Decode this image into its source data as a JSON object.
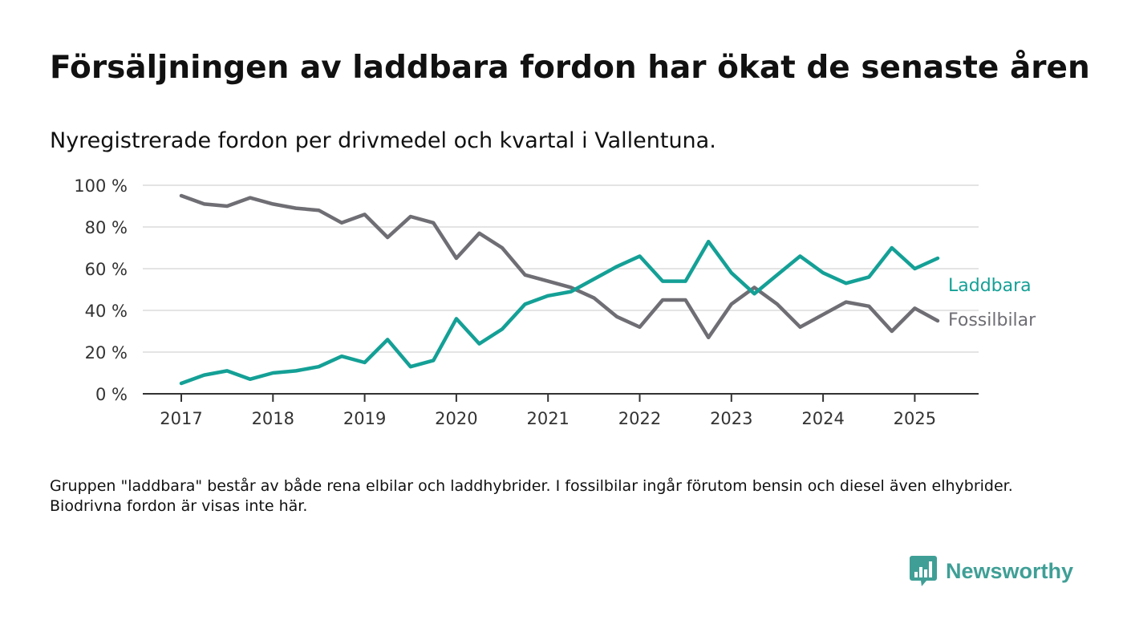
{
  "header": {
    "title": "Försäljningen av laddbara fordon har ökat de senaste åren",
    "subtitle": "Nyregistrerade fordon per drivmedel och kvartal i Vallentuna."
  },
  "footer": {
    "note": "Gruppen \"laddbara\" består av både rena elbilar och laddhybrider. I fossilbilar ingår förutom bensin och diesel även elhybrider. Biodrivna fordon är visas inte här.",
    "brand": "Newsworthy",
    "brand_icon": "bar-chart-icon"
  },
  "colors": {
    "laddbara": "#14a096",
    "fossilbilar": "#6e6e74",
    "brand": "#3f9f96",
    "grid": "#dcdcdc",
    "axis": "#333333"
  },
  "chart_data": {
    "type": "line",
    "title": "Försäljningen av laddbara fordon har ökat de senaste åren",
    "subtitle": "Nyregistrerade fordon per drivmedel och kvartal i Vallentuna.",
    "xlabel": "",
    "ylabel": "",
    "x_ticks": [
      "2017",
      "2018",
      "2019",
      "2020",
      "2021",
      "2022",
      "2023",
      "2024",
      "2025"
    ],
    "y_ticks": [
      "0 %",
      "20 %",
      "40 %",
      "60 %",
      "80 %",
      "100 %"
    ],
    "ylim": [
      0,
      100
    ],
    "xlim": [
      2017.0,
      2025.25
    ],
    "grid": "horizontal",
    "legend": "inline labels at line ends",
    "x": [
      2017.0,
      2017.25,
      2017.5,
      2017.75,
      2018.0,
      2018.25,
      2018.5,
      2018.75,
      2019.0,
      2019.25,
      2019.5,
      2019.75,
      2020.0,
      2020.25,
      2020.5,
      2020.75,
      2021.0,
      2021.25,
      2021.5,
      2021.75,
      2022.0,
      2022.25,
      2022.5,
      2022.75,
      2023.0,
      2023.25,
      2023.5,
      2023.75,
      2024.0,
      2024.25,
      2024.5,
      2024.75,
      2025.0,
      2025.25
    ],
    "series": [
      {
        "name": "Laddbara",
        "color": "#14a096",
        "values": [
          5,
          9,
          11,
          7,
          10,
          11,
          13,
          18,
          15,
          26,
          13,
          16,
          36,
          24,
          31,
          43,
          47,
          49,
          55,
          61,
          66,
          54,
          54,
          73,
          58,
          48,
          57,
          66,
          58,
          53,
          56,
          70,
          60,
          65
        ]
      },
      {
        "name": "Fossilbilar",
        "color": "#6e6e74",
        "values": [
          95,
          91,
          90,
          94,
          91,
          89,
          88,
          82,
          86,
          75,
          85,
          82,
          65,
          77,
          70,
          57,
          54,
          51,
          46,
          37,
          32,
          45,
          45,
          27,
          43,
          51,
          43,
          32,
          38,
          44,
          42,
          30,
          41,
          35
        ]
      }
    ]
  }
}
